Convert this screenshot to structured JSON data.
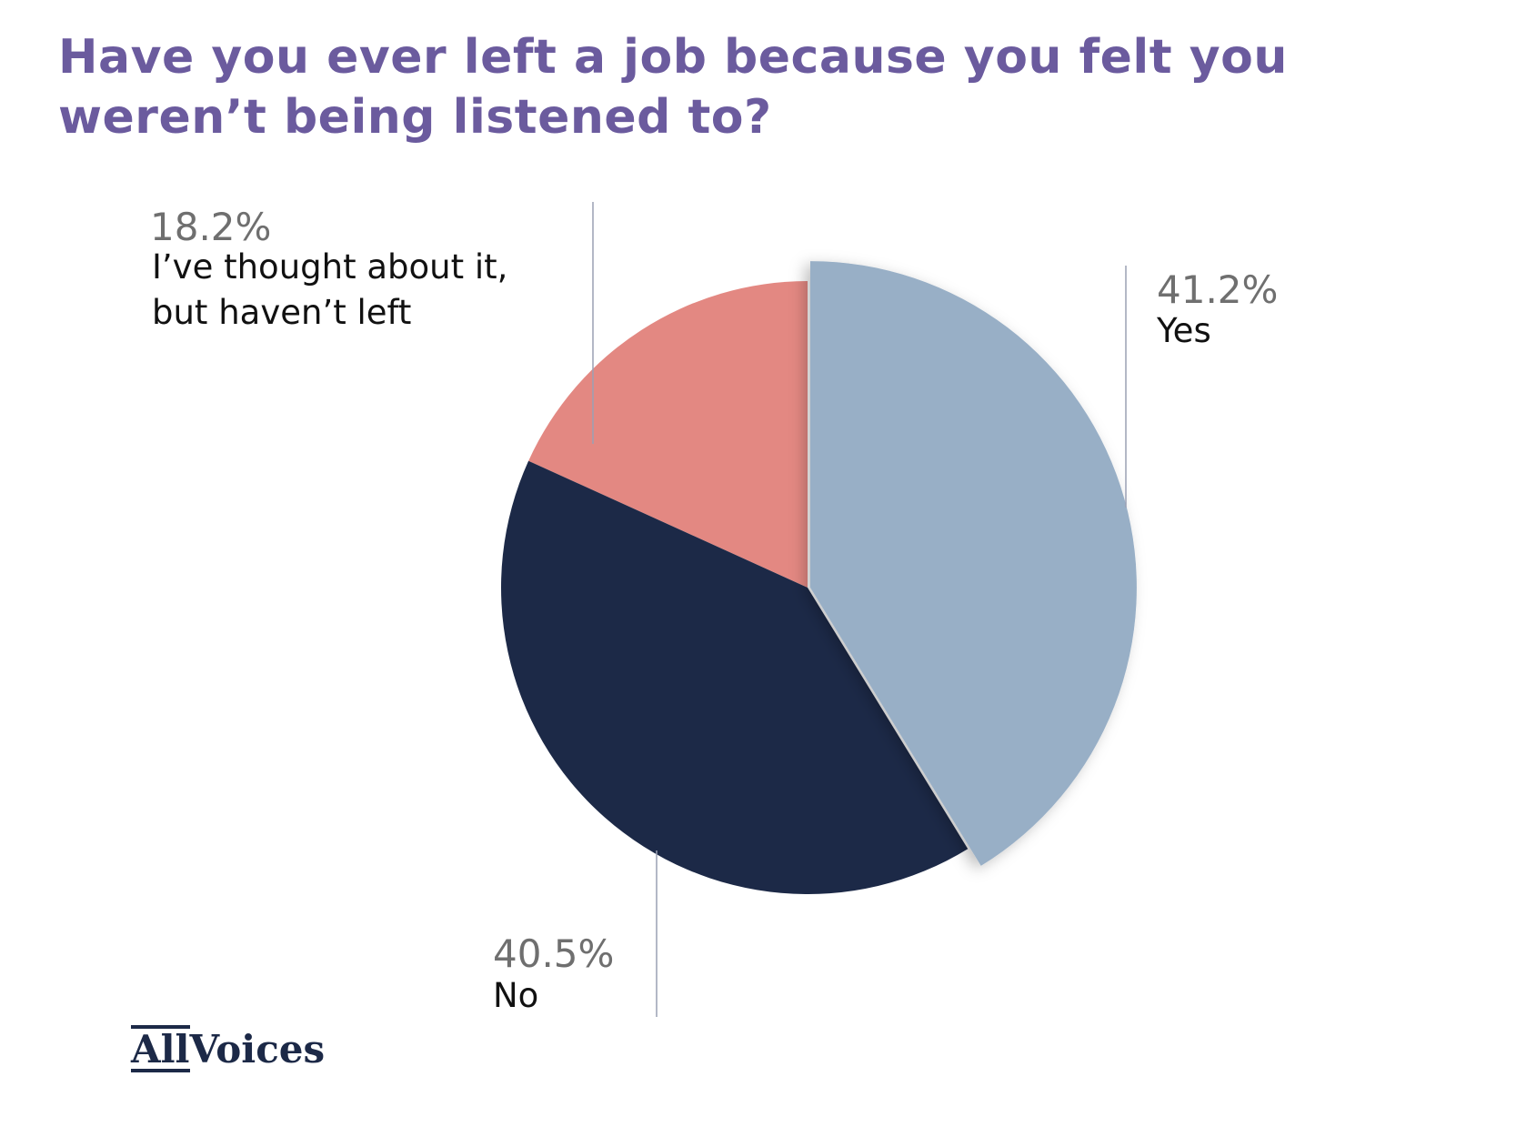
{
  "title_lines": [
    "Have you ever left a job because you felt you",
    "weren’t being listened to?"
  ],
  "logo": {
    "part1": "All",
    "part2": "Voices"
  },
  "chart_data": {
    "type": "pie",
    "title": "Have you ever left a job because you felt you weren’t being listened to?",
    "slices": [
      {
        "label": "Yes",
        "pct_label": "41.2%",
        "value": 41.2,
        "color": "#98afc6"
      },
      {
        "label": "No",
        "pct_label": "40.5%",
        "value": 40.5,
        "color": "#1c2947"
      },
      {
        "label_lines": [
          "I’ve thought about it,",
          "but haven’t left"
        ],
        "pct_label": "18.2%",
        "value": 18.2,
        "color": "#e38882"
      }
    ]
  }
}
